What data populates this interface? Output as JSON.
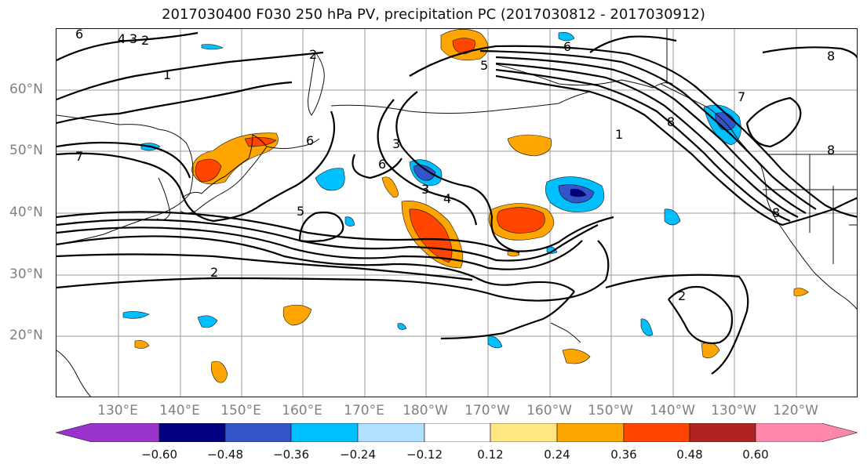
{
  "title": "2017030400 F030 250 hPa PV, precipitation PC (2017030812 - 2017030912)",
  "lat_labels": [
    "60°N",
    "50°N",
    "40°N",
    "30°N",
    "20°N"
  ],
  "lon_labels": [
    "130°E",
    "140°E",
    "150°E",
    "160°E",
    "170°E",
    "180°W",
    "170°W",
    "160°W",
    "150°W",
    "140°W",
    "130°W",
    "120°W"
  ],
  "contour_labels": [
    "6",
    "4",
    "3",
    "2",
    "2",
    "1",
    "7",
    "6",
    "6",
    "5",
    "5",
    "3",
    "3",
    "4",
    "2",
    "2",
    "6",
    "8",
    "1",
    "8",
    "7",
    "8",
    "8"
  ],
  "colorbar": {
    "ticks": [
      "−0.60",
      "−0.48",
      "−0.36",
      "−0.24",
      "−0.12",
      "0.12",
      "0.24",
      "0.36",
      "0.48",
      "0.60"
    ],
    "colors": [
      "#9933cc",
      "#000080",
      "#3355cc",
      "#00bfff",
      "#b0e0ff",
      "#ffffff",
      "#ffe680",
      "#ffa500",
      "#ff4500",
      "#b22222",
      "#ff88aa"
    ]
  },
  "colors": {
    "land_lines": "#111111",
    "grid": "#999999",
    "pv_contours": "#000000"
  }
}
